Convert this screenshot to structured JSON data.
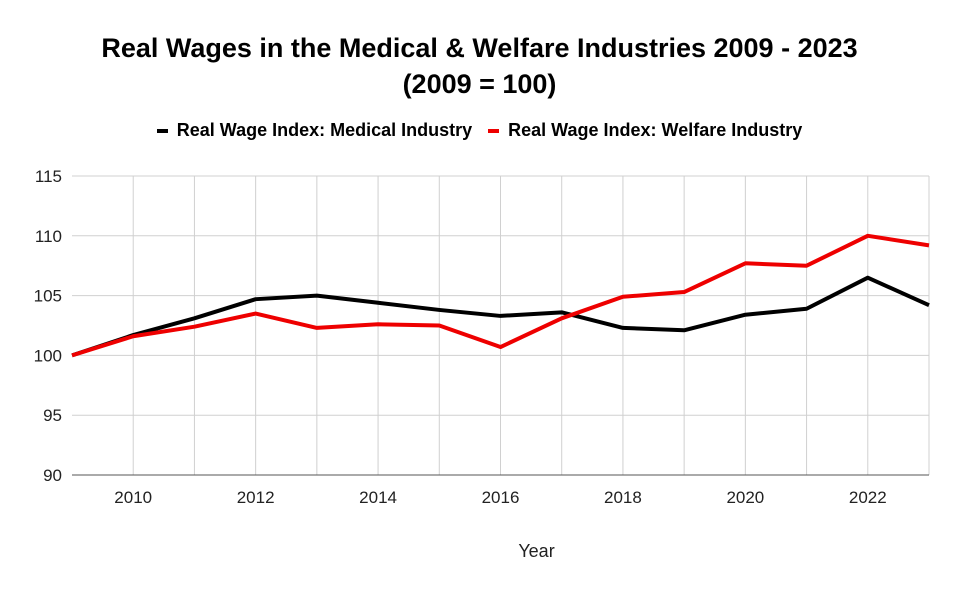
{
  "chart_data": {
    "type": "line",
    "title_lines": [
      "Real Wages in the Medical & Welfare Industries 2009 - 2023",
      "(2009 = 100)"
    ],
    "xlabel": "Year",
    "ylabel": "",
    "x": [
      2009,
      2010,
      2011,
      2012,
      2013,
      2014,
      2015,
      2016,
      2017,
      2018,
      2019,
      2020,
      2021,
      2022,
      2023
    ],
    "xlim": [
      2009,
      2023
    ],
    "ylim": [
      90,
      115
    ],
    "x_ticks": [
      2010,
      2012,
      2014,
      2016,
      2018,
      2020,
      2022
    ],
    "y_ticks": [
      90,
      95,
      100,
      105,
      110,
      115
    ],
    "grid": true,
    "legend_position": "top",
    "series": [
      {
        "name": "Real Wage Index: Medical Industry",
        "color": "#000000",
        "values": [
          100,
          101.7,
          103.1,
          104.7,
          105.0,
          104.4,
          103.8,
          103.3,
          103.6,
          102.3,
          102.1,
          103.4,
          103.9,
          106.5,
          104.2
        ]
      },
      {
        "name": "Real Wage Index: Welfare Industry",
        "color": "#ee0000",
        "values": [
          100,
          101.6,
          102.4,
          103.5,
          102.3,
          102.6,
          102.5,
          100.7,
          103.1,
          104.9,
          105.3,
          107.7,
          107.5,
          110.0,
          109.2
        ]
      }
    ]
  }
}
